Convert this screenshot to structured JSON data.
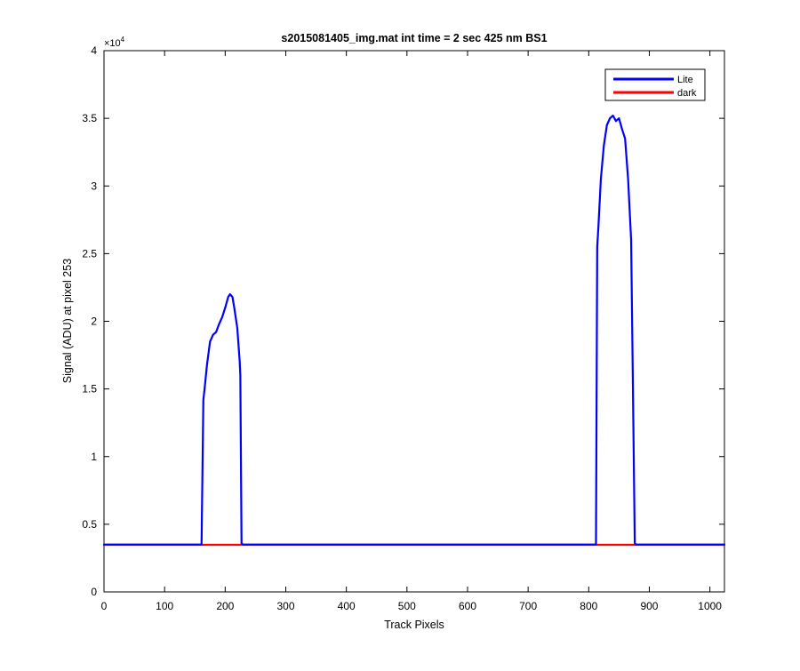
{
  "chart_data": {
    "type": "line",
    "title": "s2015081405_img.mat int time = 2 sec  425 nm BS1",
    "xlabel": "Track Pixels",
    "ylabel": "Signal (ADU) at pixel 253",
    "y_exponent_label": "×10",
    "y_exponent_power": "4",
    "xlim": [
      0,
      1024
    ],
    "ylim": [
      0,
      40000
    ],
    "x_ticks": [
      0,
      100,
      200,
      300,
      400,
      500,
      600,
      700,
      800,
      900,
      1000
    ],
    "x_tick_labels": [
      "0",
      "100",
      "200",
      "300",
      "400",
      "500",
      "600",
      "700",
      "800",
      "900",
      "1000"
    ],
    "y_ticks": [
      0,
      5000,
      10000,
      15000,
      20000,
      25000,
      30000,
      35000,
      40000
    ],
    "y_tick_labels": [
      "0",
      "0.5",
      "1",
      "1.5",
      "2",
      "2.5",
      "3",
      "3.5",
      "4"
    ],
    "grid": false,
    "legend_position": "top-right",
    "series": [
      {
        "name": "Lite",
        "color": "#0000ff",
        "x": [
          0,
          100,
          161,
          164,
          166,
          170,
          175,
          180,
          185,
          190,
          195,
          200,
          205,
          208,
          212,
          215,
          220,
          224,
          225,
          227,
          229,
          300,
          500,
          700,
          812,
          814,
          816,
          820,
          825,
          830,
          835,
          840,
          845,
          850,
          855,
          860,
          865,
          870,
          873,
          876,
          878,
          900,
          1024
        ],
        "y": [
          3500,
          3500,
          3500,
          14200,
          15000,
          16800,
          18500,
          19000,
          19200,
          19800,
          20300,
          21000,
          21800,
          22000,
          21800,
          21000,
          19500,
          17000,
          16000,
          3600,
          3500,
          3500,
          3500,
          3500,
          3500,
          25500,
          27000,
          30500,
          33000,
          34500,
          35000,
          35200,
          34800,
          35000,
          34200,
          33500,
          30500,
          26000,
          15000,
          3600,
          3500,
          3500,
          3500
        ]
      },
      {
        "name": "dark",
        "color": "#ff0000",
        "x": [
          0,
          1024
        ],
        "y": [
          3480,
          3480
        ]
      }
    ]
  }
}
